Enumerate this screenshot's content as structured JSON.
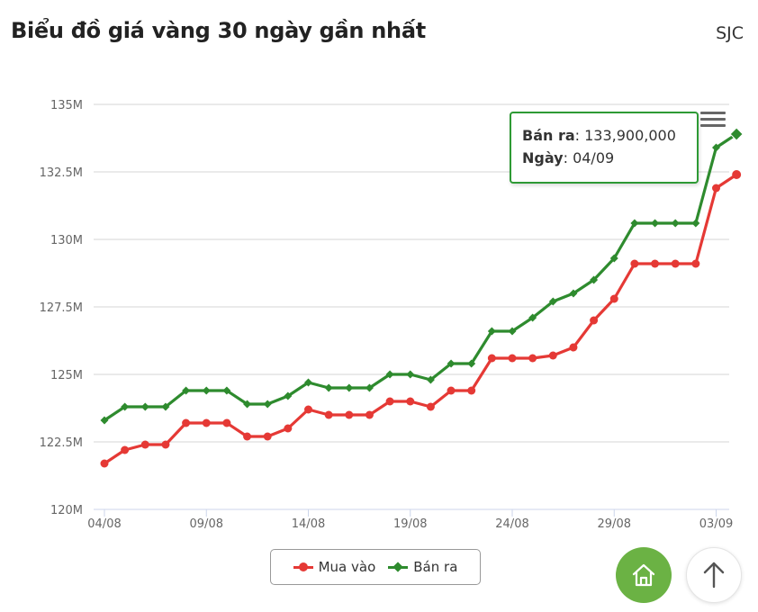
{
  "header": {
    "title": "Biểu đồ giá vàng 30 ngày gần nhất",
    "brand": "SJC"
  },
  "chart_data": {
    "type": "line",
    "x": [
      "04/08",
      "05/08",
      "06/08",
      "07/08",
      "08/08",
      "09/08",
      "10/08",
      "11/08",
      "12/08",
      "13/08",
      "14/08",
      "15/08",
      "16/08",
      "17/08",
      "18/08",
      "19/08",
      "20/08",
      "21/08",
      "22/08",
      "23/08",
      "24/08",
      "25/08",
      "26/08",
      "27/08",
      "28/08",
      "29/08",
      "30/08",
      "31/08",
      "01/09",
      "02/09",
      "03/09",
      "04/09"
    ],
    "x_tick_labels": [
      "04/08",
      "09/08",
      "14/08",
      "19/08",
      "24/08",
      "29/08",
      "03/09"
    ],
    "series": [
      {
        "name": "Mua vào",
        "color": "#e53935",
        "marker": "circle",
        "values": [
          121700000,
          122200000,
          122400000,
          122400000,
          123200000,
          123200000,
          123200000,
          122700000,
          122700000,
          123000000,
          123700000,
          123500000,
          123500000,
          123500000,
          124000000,
          124000000,
          123800000,
          124400000,
          124400000,
          125600000,
          125600000,
          125600000,
          125700000,
          126000000,
          127000000,
          127800000,
          129100000,
          129100000,
          129100000,
          129100000,
          131900000,
          132400000
        ]
      },
      {
        "name": "Bán ra",
        "color": "#2e8b2e",
        "marker": "diamond",
        "values": [
          123300000,
          123800000,
          123800000,
          123800000,
          124400000,
          124400000,
          124400000,
          123900000,
          123900000,
          124200000,
          124700000,
          124500000,
          124500000,
          124500000,
          125000000,
          125000000,
          124800000,
          125400000,
          125400000,
          126600000,
          126600000,
          127100000,
          127700000,
          128000000,
          128500000,
          129300000,
          130600000,
          130600000,
          130600000,
          130600000,
          133400000,
          133900000
        ]
      }
    ],
    "y_ticks": [
      120000000,
      122500000,
      125000000,
      127500000,
      130000000,
      132500000,
      135000000
    ],
    "y_tick_labels": [
      "120M",
      "122.5M",
      "125M",
      "127.5M",
      "130M",
      "132.5M",
      "135M"
    ],
    "ylim": [
      120000000,
      135000000
    ],
    "grid": true,
    "legend": "bottom-center"
  },
  "tooltip": {
    "series_label": "Bán ra",
    "value": "133,900,000",
    "date_label": "Ngày",
    "date": "04/09"
  },
  "colors": {
    "buy": "#e53935",
    "sell": "#2e8b2e",
    "home_button": "#6bb244",
    "tooltip_border": "#2e9a35"
  },
  "icons": {
    "menu": "hamburger-icon",
    "home": "home-icon",
    "up": "arrow-up-icon"
  }
}
